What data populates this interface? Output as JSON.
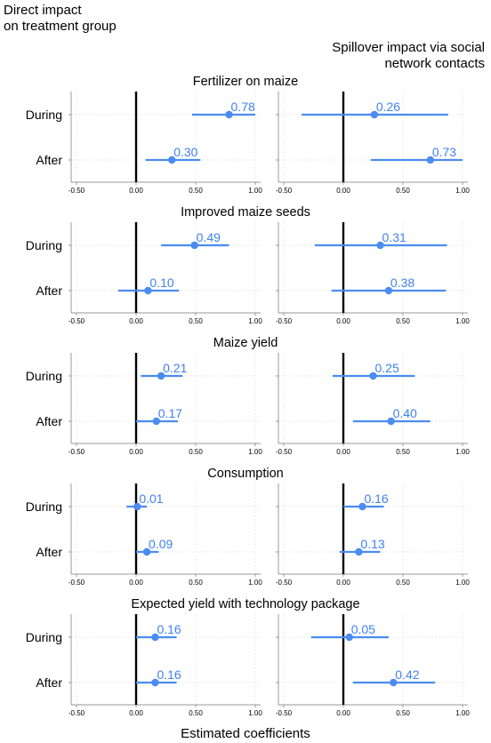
{
  "header": {
    "left_lines": [
      "Direct impact",
      "on treatment group"
    ],
    "right_lines": [
      "Spillover impact via social",
      "network contacts"
    ]
  },
  "footer": {
    "xlabel": "Estimated coefficients"
  },
  "colors": {
    "point": "#4a8cf0",
    "label": "#3f82ee",
    "zero_line": "#000000",
    "grid": "#e3e3e3",
    "axis": "#9a9a9a"
  },
  "chart_data": {
    "type": "scatter",
    "style": "coefficient plot with confidence intervals",
    "xlim": [
      -0.5,
      1.0
    ],
    "xticks": [
      -0.5,
      0,
      0.5,
      1.0
    ],
    "xtick_labels": [
      "-0.50",
      "0.00",
      "0.50",
      "1.00"
    ],
    "categories": [
      "During",
      "After"
    ],
    "grid": true,
    "panels": [
      {
        "title": "Fertilizer on maize",
        "direct": [
          {
            "cat": "During",
            "value": 0.78,
            "label": "0.78",
            "lo": 0.47,
            "hi": 1.0
          },
          {
            "cat": "After",
            "value": 0.3,
            "label": "0.30",
            "lo": 0.08,
            "hi": 0.54
          }
        ],
        "spillover": [
          {
            "cat": "During",
            "value": 0.26,
            "label": "0.26",
            "lo": -0.35,
            "hi": 0.88
          },
          {
            "cat": "After",
            "value": 0.73,
            "label": "0.73",
            "lo": 0.23,
            "hi": 1.0
          }
        ]
      },
      {
        "title": "Improved maize seeds",
        "direct": [
          {
            "cat": "During",
            "value": 0.49,
            "label": "0.49",
            "lo": 0.21,
            "hi": 0.78
          },
          {
            "cat": "After",
            "value": 0.1,
            "label": "0.10",
            "lo": -0.15,
            "hi": 0.36
          }
        ],
        "spillover": [
          {
            "cat": "During",
            "value": 0.31,
            "label": "0.31",
            "lo": -0.24,
            "hi": 0.87
          },
          {
            "cat": "After",
            "value": 0.38,
            "label": "0.38",
            "lo": -0.1,
            "hi": 0.86
          }
        ]
      },
      {
        "title": "Maize yield",
        "direct": [
          {
            "cat": "During",
            "value": 0.21,
            "label": "0.21",
            "lo": 0.04,
            "hi": 0.39
          },
          {
            "cat": "After",
            "value": 0.17,
            "label": "0.17",
            "lo": 0.0,
            "hi": 0.35
          }
        ],
        "spillover": [
          {
            "cat": "During",
            "value": 0.25,
            "label": "0.25",
            "lo": -0.09,
            "hi": 0.6
          },
          {
            "cat": "After",
            "value": 0.4,
            "label": "0.40",
            "lo": 0.08,
            "hi": 0.73
          }
        ]
      },
      {
        "title": "Consumption",
        "direct": [
          {
            "cat": "During",
            "value": 0.01,
            "label": "0.01",
            "lo": -0.08,
            "hi": 0.09
          },
          {
            "cat": "After",
            "value": 0.09,
            "label": "0.09",
            "lo": 0.0,
            "hi": 0.19
          }
        ],
        "spillover": [
          {
            "cat": "During",
            "value": 0.16,
            "label": "0.16",
            "lo": 0.0,
            "hi": 0.34
          },
          {
            "cat": "After",
            "value": 0.13,
            "label": "0.13",
            "lo": -0.03,
            "hi": 0.31
          }
        ]
      },
      {
        "title": "Expected yield with technology package",
        "direct": [
          {
            "cat": "During",
            "value": 0.16,
            "label": "0.16",
            "lo": 0.0,
            "hi": 0.34
          },
          {
            "cat": "After",
            "value": 0.16,
            "label": "0.16",
            "lo": 0.0,
            "hi": 0.34
          }
        ],
        "spillover": [
          {
            "cat": "During",
            "value": 0.05,
            "label": "0.05",
            "lo": -0.27,
            "hi": 0.38
          },
          {
            "cat": "After",
            "value": 0.42,
            "label": "0.42",
            "lo": 0.08,
            "hi": 0.77
          }
        ]
      }
    ]
  }
}
